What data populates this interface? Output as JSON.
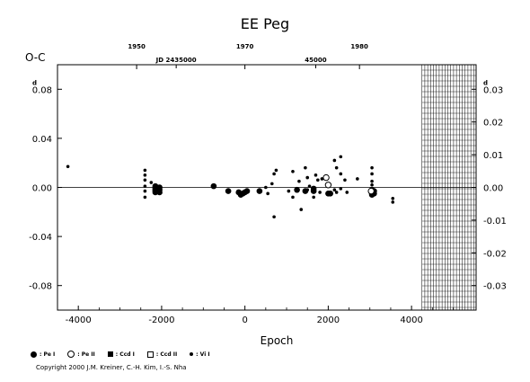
{
  "chart_data": {
    "type": "scatter",
    "title": "EE Peg",
    "ylabel": "O-C",
    "xlabel": "Epoch",
    "y_unit_mark": "d",
    "xlim": [
      -4500,
      5550
    ],
    "ylim": [
      -0.1,
      0.1
    ],
    "x_ticks": [
      -4000,
      -2000,
      0,
      2000,
      4000
    ],
    "y_ticks": [
      -0.08,
      -0.04,
      0.0,
      0.04,
      0.08
    ],
    "y_tick_labels": [
      "-0.08",
      "-0.04",
      "0.00",
      "0.04",
      "0.08"
    ],
    "y2_ticks": [
      -0.03,
      -0.02,
      -0.01,
      0.0,
      0.01,
      0.02,
      0.03
    ],
    "y2_tick_labels": [
      "-0.03",
      "-0.02",
      "-0.01",
      "0.00",
      "0.01",
      "0.02",
      "0.03"
    ],
    "top_year_ticks": [
      {
        "label": "1950",
        "epoch": -2600
      },
      {
        "label": "1970",
        "epoch": 0
      },
      {
        "label": "1980",
        "epoch": 2750
      }
    ],
    "jd_labels": [
      {
        "text": "JD 2435000",
        "epoch": -1650
      },
      {
        "text": "45000",
        "epoch": 1700
      }
    ],
    "shaded_region_x": [
      4250,
      5550
    ],
    "grid": false,
    "series": [
      {
        "name": "Pe I",
        "symbol": "filled-circle",
        "points": [
          [
            -2150,
            0.001
          ],
          [
            -2150,
            0.0
          ],
          [
            -2150,
            -0.001
          ],
          [
            -2150,
            -0.002
          ],
          [
            -2150,
            -0.003
          ],
          [
            -2150,
            -0.004
          ],
          [
            -2050,
            0.0
          ],
          [
            -2050,
            -0.002
          ],
          [
            -2050,
            -0.004
          ],
          [
            -750,
            0.001
          ],
          [
            -400,
            -0.003
          ],
          [
            -150,
            -0.004
          ],
          [
            -100,
            -0.006
          ],
          [
            -50,
            -0.005
          ],
          [
            0,
            -0.004
          ],
          [
            50,
            -0.003
          ],
          [
            350,
            -0.003
          ],
          [
            1250,
            -0.002
          ],
          [
            1450,
            -0.003
          ],
          [
            1650,
            -0.001
          ],
          [
            1650,
            -0.003
          ],
          [
            2000,
            -0.005
          ],
          [
            2050,
            -0.005
          ],
          [
            3050,
            -0.002
          ],
          [
            3050,
            -0.003
          ],
          [
            3050,
            -0.004
          ],
          [
            3050,
            -0.005
          ],
          [
            3050,
            -0.006
          ],
          [
            3100,
            -0.003
          ],
          [
            3100,
            -0.005
          ]
        ]
      },
      {
        "name": "Pe II",
        "symbol": "open-circle",
        "points": [
          [
            1950,
            0.008
          ],
          [
            2000,
            0.002
          ],
          [
            3030,
            -0.003
          ]
        ]
      },
      {
        "name": "Ccd I",
        "symbol": "filled-square",
        "points": []
      },
      {
        "name": "Ccd II",
        "symbol": "open-square",
        "points": []
      },
      {
        "name": "Vi I",
        "symbol": "small-dot",
        "points": [
          [
            -4250,
            0.017
          ],
          [
            -2400,
            0.014
          ],
          [
            -2400,
            0.01
          ],
          [
            -2400,
            0.006
          ],
          [
            -2400,
            0.001
          ],
          [
            -2400,
            -0.003
          ],
          [
            -2400,
            -0.008
          ],
          [
            -2250,
            0.004
          ],
          [
            500,
            0.0
          ],
          [
            550,
            -0.005
          ],
          [
            650,
            0.003
          ],
          [
            700,
            -0.024
          ],
          [
            700,
            0.011
          ],
          [
            750,
            0.014
          ],
          [
            1050,
            -0.003
          ],
          [
            1150,
            0.013
          ],
          [
            1150,
            -0.008
          ],
          [
            1300,
            0.005
          ],
          [
            1350,
            -0.018
          ],
          [
            1450,
            0.016
          ],
          [
            1500,
            0.008
          ],
          [
            1500,
            -0.002
          ],
          [
            1550,
            0.001
          ],
          [
            1650,
            -0.008
          ],
          [
            1700,
            0.01
          ],
          [
            1750,
            0.006
          ],
          [
            1800,
            -0.004
          ],
          [
            1850,
            0.007
          ],
          [
            2150,
            0.022
          ],
          [
            2150,
            -0.002
          ],
          [
            2200,
            0.016
          ],
          [
            2200,
            -0.004
          ],
          [
            2300,
            0.025
          ],
          [
            2300,
            0.011
          ],
          [
            2300,
            -0.001
          ],
          [
            2400,
            0.006
          ],
          [
            2450,
            -0.004
          ],
          [
            2700,
            0.007
          ],
          [
            3050,
            0.016
          ],
          [
            3050,
            0.011
          ],
          [
            3050,
            0.005
          ],
          [
            3050,
            0.002
          ],
          [
            3550,
            -0.009
          ],
          [
            3550,
            -0.012
          ]
        ]
      }
    ]
  },
  "legend": [
    {
      "symbol": "filled-circle",
      "label": ": Pe I"
    },
    {
      "symbol": "open-circle",
      "label": ": Pe II"
    },
    {
      "symbol": "filled-square",
      "label": ": Ccd I"
    },
    {
      "symbol": "open-square",
      "label": ": Ccd II"
    },
    {
      "symbol": "small-dot",
      "label": ": Vi I"
    }
  ],
  "copyright": "Copyright 2000 J.M. Kreiner, C.-H. Kim, I.-S. Nha"
}
